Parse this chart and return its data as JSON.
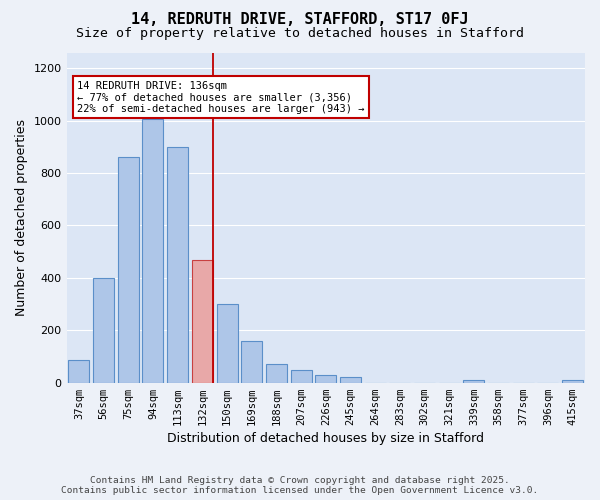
{
  "title1": "14, REDRUTH DRIVE, STAFFORD, ST17 0FJ",
  "title2": "Size of property relative to detached houses in Stafford",
  "xlabel": "Distribution of detached houses by size in Stafford",
  "ylabel": "Number of detached properties",
  "categories": [
    "37sqm",
    "56sqm",
    "75sqm",
    "94sqm",
    "113sqm",
    "132sqm",
    "150sqm",
    "169sqm",
    "188sqm",
    "207sqm",
    "226sqm",
    "245sqm",
    "264sqm",
    "283sqm",
    "302sqm",
    "321sqm",
    "339sqm",
    "358sqm",
    "377sqm",
    "396sqm",
    "415sqm"
  ],
  "values": [
    85,
    400,
    860,
    1005,
    900,
    470,
    300,
    160,
    70,
    50,
    30,
    20,
    0,
    0,
    0,
    0,
    10,
    0,
    0,
    0,
    10
  ],
  "bar_color": "#aec6e8",
  "bar_edge_color": "#5b8fc9",
  "highlight_bar_index": 5,
  "highlight_bar_fill": "#e8a8a8",
  "highlight_bar_edge": "#c84040",
  "vline_color": "#c00000",
  "annotation_title": "14 REDRUTH DRIVE: 136sqm",
  "annotation_line1": "← 77% of detached houses are smaller (3,356)",
  "annotation_line2": "22% of semi-detached houses are larger (943) →",
  "ylim": [
    0,
    1260
  ],
  "yticks": [
    0,
    200,
    400,
    600,
    800,
    1000,
    1200
  ],
  "bg_color": "#dce6f5",
  "fig_bg_color": "#edf1f8",
  "footer1": "Contains HM Land Registry data © Crown copyright and database right 2025.",
  "footer2": "Contains public sector information licensed under the Open Government Licence v3.0.",
  "title_fontsize": 11,
  "subtitle_fontsize": 9.5,
  "axis_label_fontsize": 9,
  "tick_fontsize": 7.5,
  "footer_fontsize": 6.8
}
